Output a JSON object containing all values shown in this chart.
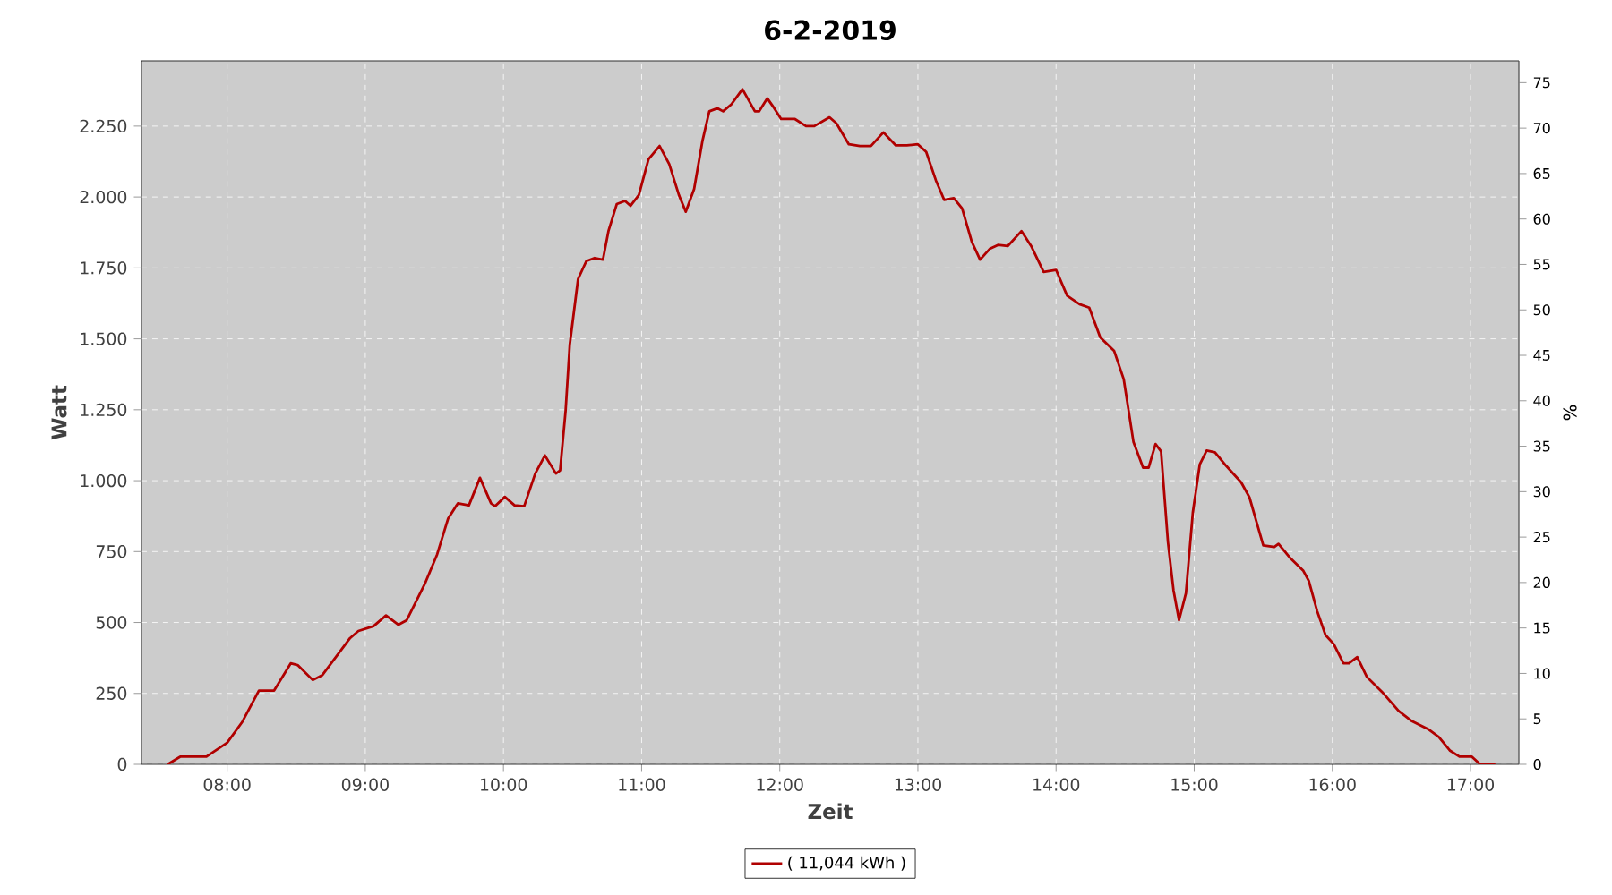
{
  "chart_data": {
    "type": "line",
    "title": "6-2-2019",
    "xlabel": "Zeit",
    "ylabel": "Watt",
    "y2label": "%",
    "x": [
      7.57,
      7.66,
      7.85,
      8.0,
      8.11,
      8.23,
      8.34,
      8.46,
      8.51,
      8.62,
      8.69,
      8.89,
      8.95,
      9.06,
      9.15,
      9.24,
      9.3,
      9.43,
      9.52,
      9.6,
      9.67,
      9.75,
      9.83,
      9.91,
      9.94,
      10.01,
      10.08,
      10.15,
      10.23,
      10.3,
      10.38,
      10.41,
      10.45,
      10.48,
      10.54,
      10.6,
      10.66,
      10.72,
      10.76,
      10.82,
      10.88,
      10.92,
      10.98,
      11.05,
      11.13,
      11.2,
      11.27,
      11.32,
      11.38,
      11.44,
      11.49,
      11.55,
      11.59,
      11.65,
      11.73,
      11.82,
      11.85,
      11.91,
      11.96,
      12.01,
      12.11,
      12.19,
      12.25,
      12.36,
      12.41,
      12.5,
      12.58,
      12.66,
      12.75,
      12.84,
      12.92,
      13.0,
      13.06,
      13.13,
      13.19,
      13.26,
      13.32,
      13.39,
      13.45,
      13.52,
      13.58,
      13.65,
      13.75,
      13.82,
      13.91,
      14.0,
      14.08,
      14.17,
      14.24,
      14.32,
      14.42,
      14.49,
      14.56,
      14.63,
      14.67,
      14.72,
      14.76,
      14.81,
      14.85,
      14.89,
      14.94,
      14.99,
      15.04,
      15.09,
      15.15,
      15.23,
      15.34,
      15.4,
      15.45,
      15.5,
      15.58,
      15.61,
      15.69,
      15.79,
      15.83,
      15.89,
      15.95,
      16.01,
      16.08,
      16.12,
      16.18,
      16.25,
      16.36,
      16.48,
      16.57,
      16.7,
      16.77,
      16.85,
      16.92,
      17.01,
      17.07,
      17.18
    ],
    "series": [
      {
        "name": "( 11,044 kWh )",
        "color": "#b00000",
        "values": [
          0,
          27,
          27,
          76,
          150,
          260,
          260,
          356,
          350,
          297,
          315,
          445,
          470,
          487,
          525,
          492,
          508,
          635,
          740,
          867,
          920,
          913,
          1010,
          920,
          910,
          943,
          913,
          910,
          1025,
          1089,
          1025,
          1036,
          1247,
          1479,
          1711,
          1774,
          1785,
          1779,
          1880,
          1975,
          1986,
          1969,
          2007,
          2133,
          2180,
          2116,
          2007,
          1948,
          2028,
          2197,
          2302,
          2313,
          2302,
          2327,
          2380,
          2302,
          2302,
          2348,
          2313,
          2275,
          2275,
          2250,
          2250,
          2281,
          2260,
          2186,
          2180,
          2180,
          2228,
          2182,
          2182,
          2186,
          2159,
          2059,
          1990,
          1996,
          1960,
          1842,
          1779,
          1817,
          1831,
          1827,
          1880,
          1827,
          1736,
          1743,
          1652,
          1622,
          1610,
          1505,
          1458,
          1357,
          1137,
          1046,
          1046,
          1129,
          1103,
          783,
          614,
          508,
          603,
          888,
          1057,
          1106,
          1100,
          1053,
          994,
          941,
          856,
          772,
          766,
          777,
          730,
          682,
          646,
          540,
          456,
          424,
          356,
          356,
          378,
          308,
          255,
          188,
          154,
          122,
          97,
          49,
          27,
          27,
          0,
          0
        ]
      }
    ],
    "xlim": [
      7.38,
      17.35
    ],
    "xticks": [
      {
        "value": 8,
        "label": "08:00"
      },
      {
        "value": 9,
        "label": "09:00"
      },
      {
        "value": 10,
        "label": "10:00"
      },
      {
        "value": 11,
        "label": "11:00"
      },
      {
        "value": 12,
        "label": "12:00"
      },
      {
        "value": 13,
        "label": "13:00"
      },
      {
        "value": 14,
        "label": "14:00"
      },
      {
        "value": 15,
        "label": "15:00"
      },
      {
        "value": 16,
        "label": "16:00"
      },
      {
        "value": 17,
        "label": "17:00"
      }
    ],
    "ylim": [
      0,
      2480
    ],
    "yticks": [
      0,
      250,
      500,
      750,
      {
        "value": 1000,
        "label": "1.000"
      },
      {
        "value": 1250,
        "label": "1.250"
      },
      {
        "value": 1500,
        "label": "1.500"
      },
      {
        "value": 1750,
        "label": "1.750"
      },
      {
        "value": 2000,
        "label": "2.000"
      },
      {
        "value": 2250,
        "label": "2.250"
      }
    ],
    "y2lim": [
      0,
      77.4
    ],
    "y2ticks": [
      0,
      5,
      10,
      15,
      20,
      25,
      30,
      35,
      40,
      45,
      50,
      55,
      60,
      65,
      70,
      75
    ],
    "grid": true,
    "legend": "bottom",
    "line_style": "solid"
  }
}
